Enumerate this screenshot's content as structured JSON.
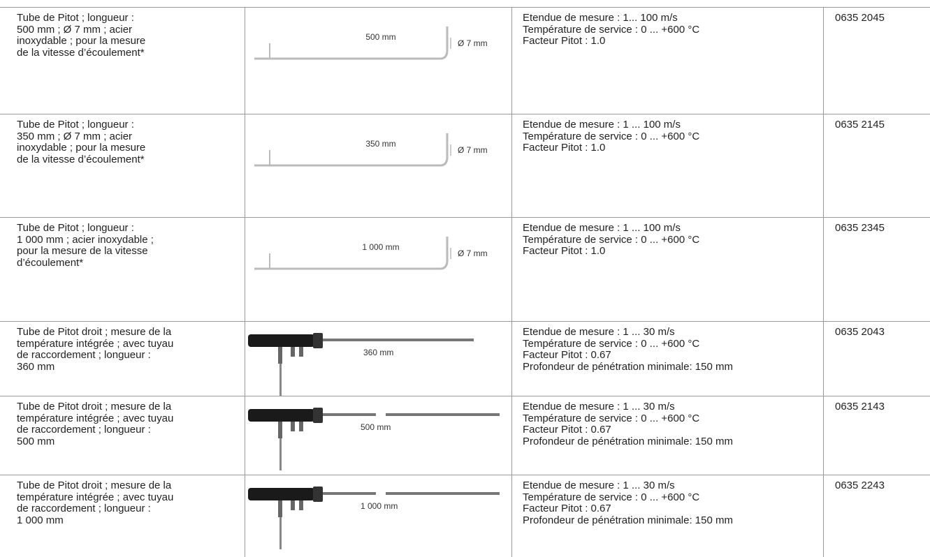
{
  "table": {
    "rows": [
      {
        "description": [
          "Tube de Pitot ; longueur :",
          "500 mm ; Ø 7 mm ; acier",
          "inoxydable ; pour la mesure",
          "de la vitesse d’écoulement*"
        ],
        "image_labels": {
          "length": "500 mm",
          "diameter": "Ø 7 mm"
        },
        "specs": [
          "Etendue de mesure : 1... 100 m/s",
          "Température de service : 0 ... +600 °C",
          "Facteur Pitot : 1.0"
        ],
        "article": "0635 2045"
      },
      {
        "description": [
          "Tube de Pitot ; longueur :",
          "350 mm ; Ø 7 mm ; acier",
          "inoxydable ; pour la mesure",
          "de la vitesse d’écoulement*"
        ],
        "image_labels": {
          "length": "350 mm",
          "diameter": "Ø 7 mm"
        },
        "specs": [
          "Etendue de mesure : 1 ... 100 m/s",
          "Température de service : 0 ... +600 °C",
          "Facteur Pitot : 1.0"
        ],
        "article": "0635 2145"
      },
      {
        "description": [
          "Tube de Pitot ; longueur :",
          "1 000 mm ; acier inoxydable ;",
          "pour la mesure de la vitesse",
          "d’écoulement*"
        ],
        "image_labels": {
          "length": "1 000 mm",
          "diameter": "Ø 7 mm"
        },
        "specs": [
          "Etendue de mesure : 1 ... 100 m/s",
          "Température de service : 0 ... +600 °C",
          "Facteur Pitot : 1.0"
        ],
        "article": "0635 2345"
      },
      {
        "description": [
          "Tube de Pitot droit ; mesure de la",
          "température intégrée ; avec tuyau",
          "de raccordement ; longueur :",
          "360 mm"
        ],
        "image_labels": {
          "length": "360 mm"
        },
        "specs": [
          "Etendue de mesure : 1 ... 30 m/s",
          "Température de service : 0 ... +600 °C",
          "Facteur Pitot : 0.67",
          "Profondeur de pénétration minimale: 150 mm"
        ],
        "article": "0635 2043"
      },
      {
        "description": [
          "Tube de Pitot droit ; mesure de la",
          "température intégrée ; avec tuyau",
          "de raccordement ; longueur :",
          "500 mm"
        ],
        "image_labels": {
          "length": "500 mm"
        },
        "specs": [
          "Etendue de mesure : 1 ... 30 m/s",
          "Température de service : 0 ... +600 °C",
          "Facteur Pitot : 0.67",
          "Profondeur de pénétration minimale: 150 mm"
        ],
        "article": "0635 2143"
      },
      {
        "description": [
          "Tube de Pitot droit ; mesure de la",
          "température intégrée ; avec tuyau",
          "de raccordement ; longueur :",
          "1 000 mm"
        ],
        "image_labels": {
          "length": "1 000 mm"
        },
        "specs": [
          "Etendue de mesure : 1 ... 30 m/s",
          "Température de service : 0 ... +600 °C",
          "Facteur Pitot : 0.67",
          "Profondeur de pénétration minimale: 150 mm"
        ],
        "article": "0635 2243"
      }
    ]
  }
}
